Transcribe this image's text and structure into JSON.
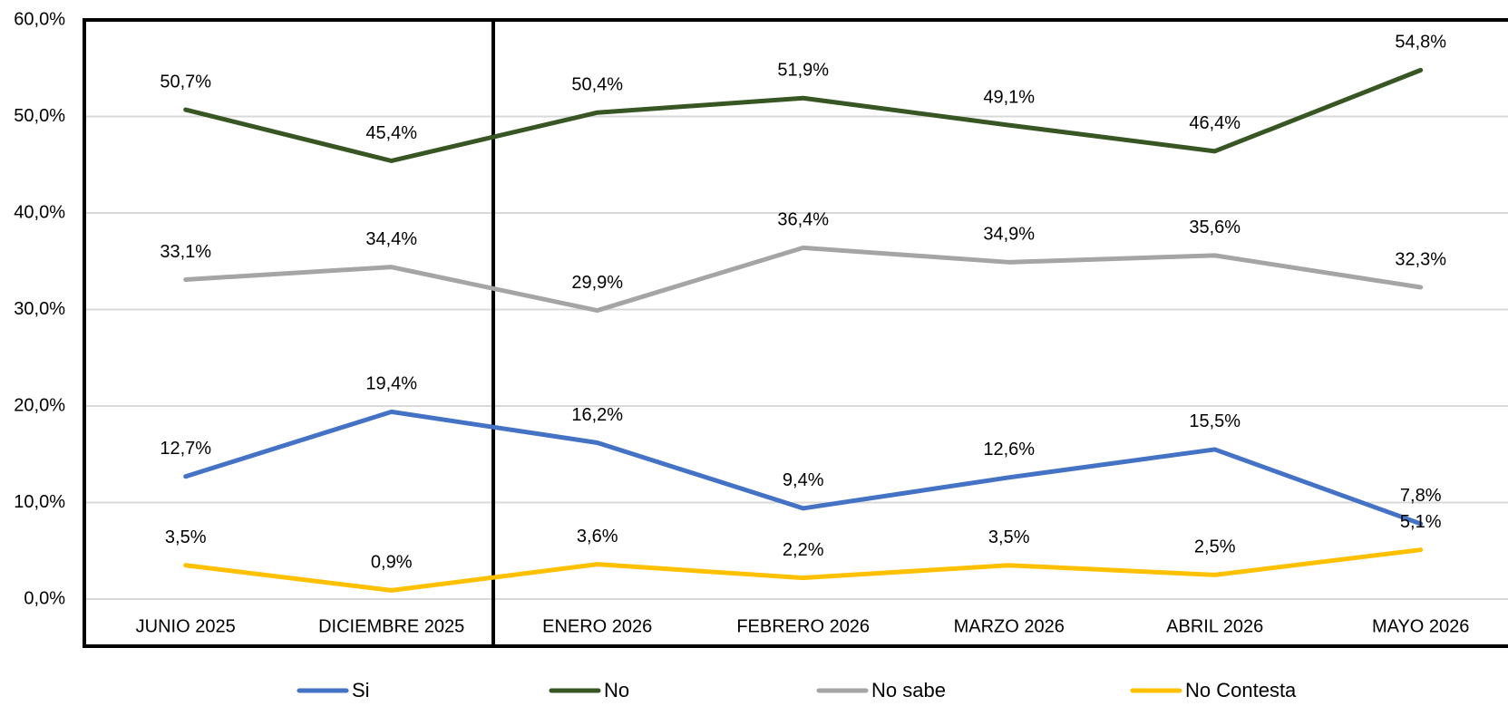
{
  "chart_data": {
    "type": "line",
    "categories": [
      "JUNIO 2025",
      "DICIEMBRE 2025",
      "ENERO 2026",
      "FEBRERO 2026",
      "MARZO 2026",
      "ABRIL 2026",
      "MAYO 2026"
    ],
    "series": [
      {
        "name": "Si",
        "color": "#4472c4",
        "values": [
          12.7,
          19.4,
          16.2,
          9.4,
          12.6,
          15.5,
          7.8
        ],
        "value_labels": [
          "12,7%",
          "19,4%",
          "16,2%",
          "9,4%",
          "12,6%",
          "15,5%",
          "7,8%"
        ]
      },
      {
        "name": "No",
        "color": "#375623",
        "values": [
          50.7,
          45.4,
          50.4,
          51.9,
          49.1,
          46.4,
          54.8
        ],
        "value_labels": [
          "50,7%",
          "45,4%",
          "50,4%",
          "51,9%",
          "49,1%",
          "46,4%",
          "54,8%"
        ]
      },
      {
        "name": "No sabe",
        "color": "#a5a5a5",
        "values": [
          33.1,
          34.4,
          29.9,
          36.4,
          34.9,
          35.6,
          32.3
        ],
        "value_labels": [
          "33,1%",
          "34,4%",
          "29,9%",
          "36,4%",
          "34,9%",
          "35,6%",
          "32,3%"
        ]
      },
      {
        "name": "No Contesta",
        "color": "#ffc000",
        "values": [
          3.5,
          0.9,
          3.6,
          2.2,
          3.5,
          2.5,
          5.1
        ],
        "value_labels": [
          "3,5%",
          "0,9%",
          "3,6%",
          "2,2%",
          "3,5%",
          "2,5%",
          "5,1%"
        ]
      }
    ],
    "ylim": [
      0,
      60
    ],
    "yticks": [
      {
        "value": 0,
        "label": "0,0%"
      },
      {
        "value": 10,
        "label": "10,0%"
      },
      {
        "value": 20,
        "label": "20,0%"
      },
      {
        "value": 30,
        "label": "30,0%"
      },
      {
        "value": 40,
        "label": "40,0%"
      },
      {
        "value": 50,
        "label": "50,0%"
      },
      {
        "value": 60,
        "label": "60,0%"
      }
    ],
    "grid": true,
    "legend": "bottom"
  }
}
